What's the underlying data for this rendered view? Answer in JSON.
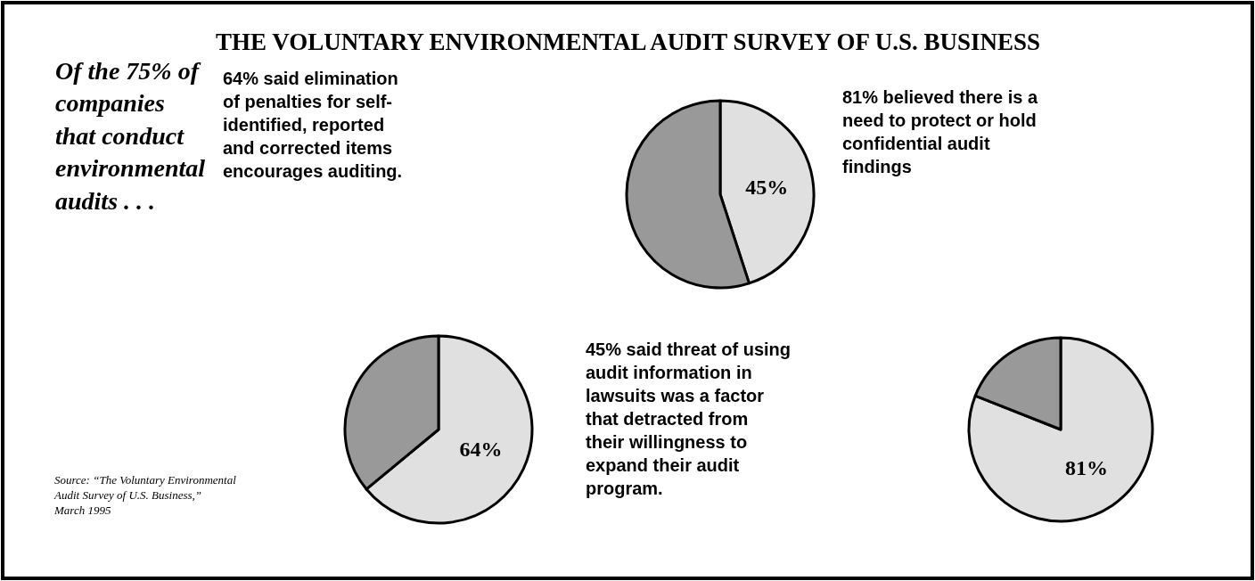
{
  "chart_data": [
    {
      "type": "pie",
      "title": "THE VOLUNTARY ENVIRONMENTAL AUDIT SURVEY OF U.S. BUSINESS",
      "categories": [
        null,
        null
      ],
      "values": [
        45,
        55
      ],
      "value_labels": [
        "45%",
        null
      ],
      "colors": [
        "#e0e0e0",
        "#999999"
      ],
      "annotations": [
        "Of the 75% of\ncompanies\nthat conduct\nenvironmental\naudits . . .",
        "45% said threat of using\naudit information in\nlawsuits was a factor\nthat detracted from\ntheir willingness to\nexpand their audit\nprogram.",
        "Source: “The Voluntary Environmental\nAudit Survey of U.S. Business,”\nMarch 1995"
      ]
    },
    {
      "type": "pie",
      "categories": [
        null,
        null
      ],
      "values": [
        64,
        36
      ],
      "value_labels": [
        "64%",
        null
      ],
      "colors": [
        "#e0e0e0",
        "#999999"
      ],
      "annotations": [
        "64% said elimination\nof penalties for self-\nidentified, reported\nand corrected items\nencourages auditing."
      ]
    },
    {
      "type": "pie",
      "categories": [
        null,
        null
      ],
      "values": [
        81,
        19
      ],
      "value_labels": [
        "81%",
        null
      ],
      "colors": [
        "#e0e0e0",
        "#999999"
      ],
      "annotations": [
        "81% believed there is a\nneed to protect or hold\nconfidential audit\nfindings"
      ]
    }
  ]
}
